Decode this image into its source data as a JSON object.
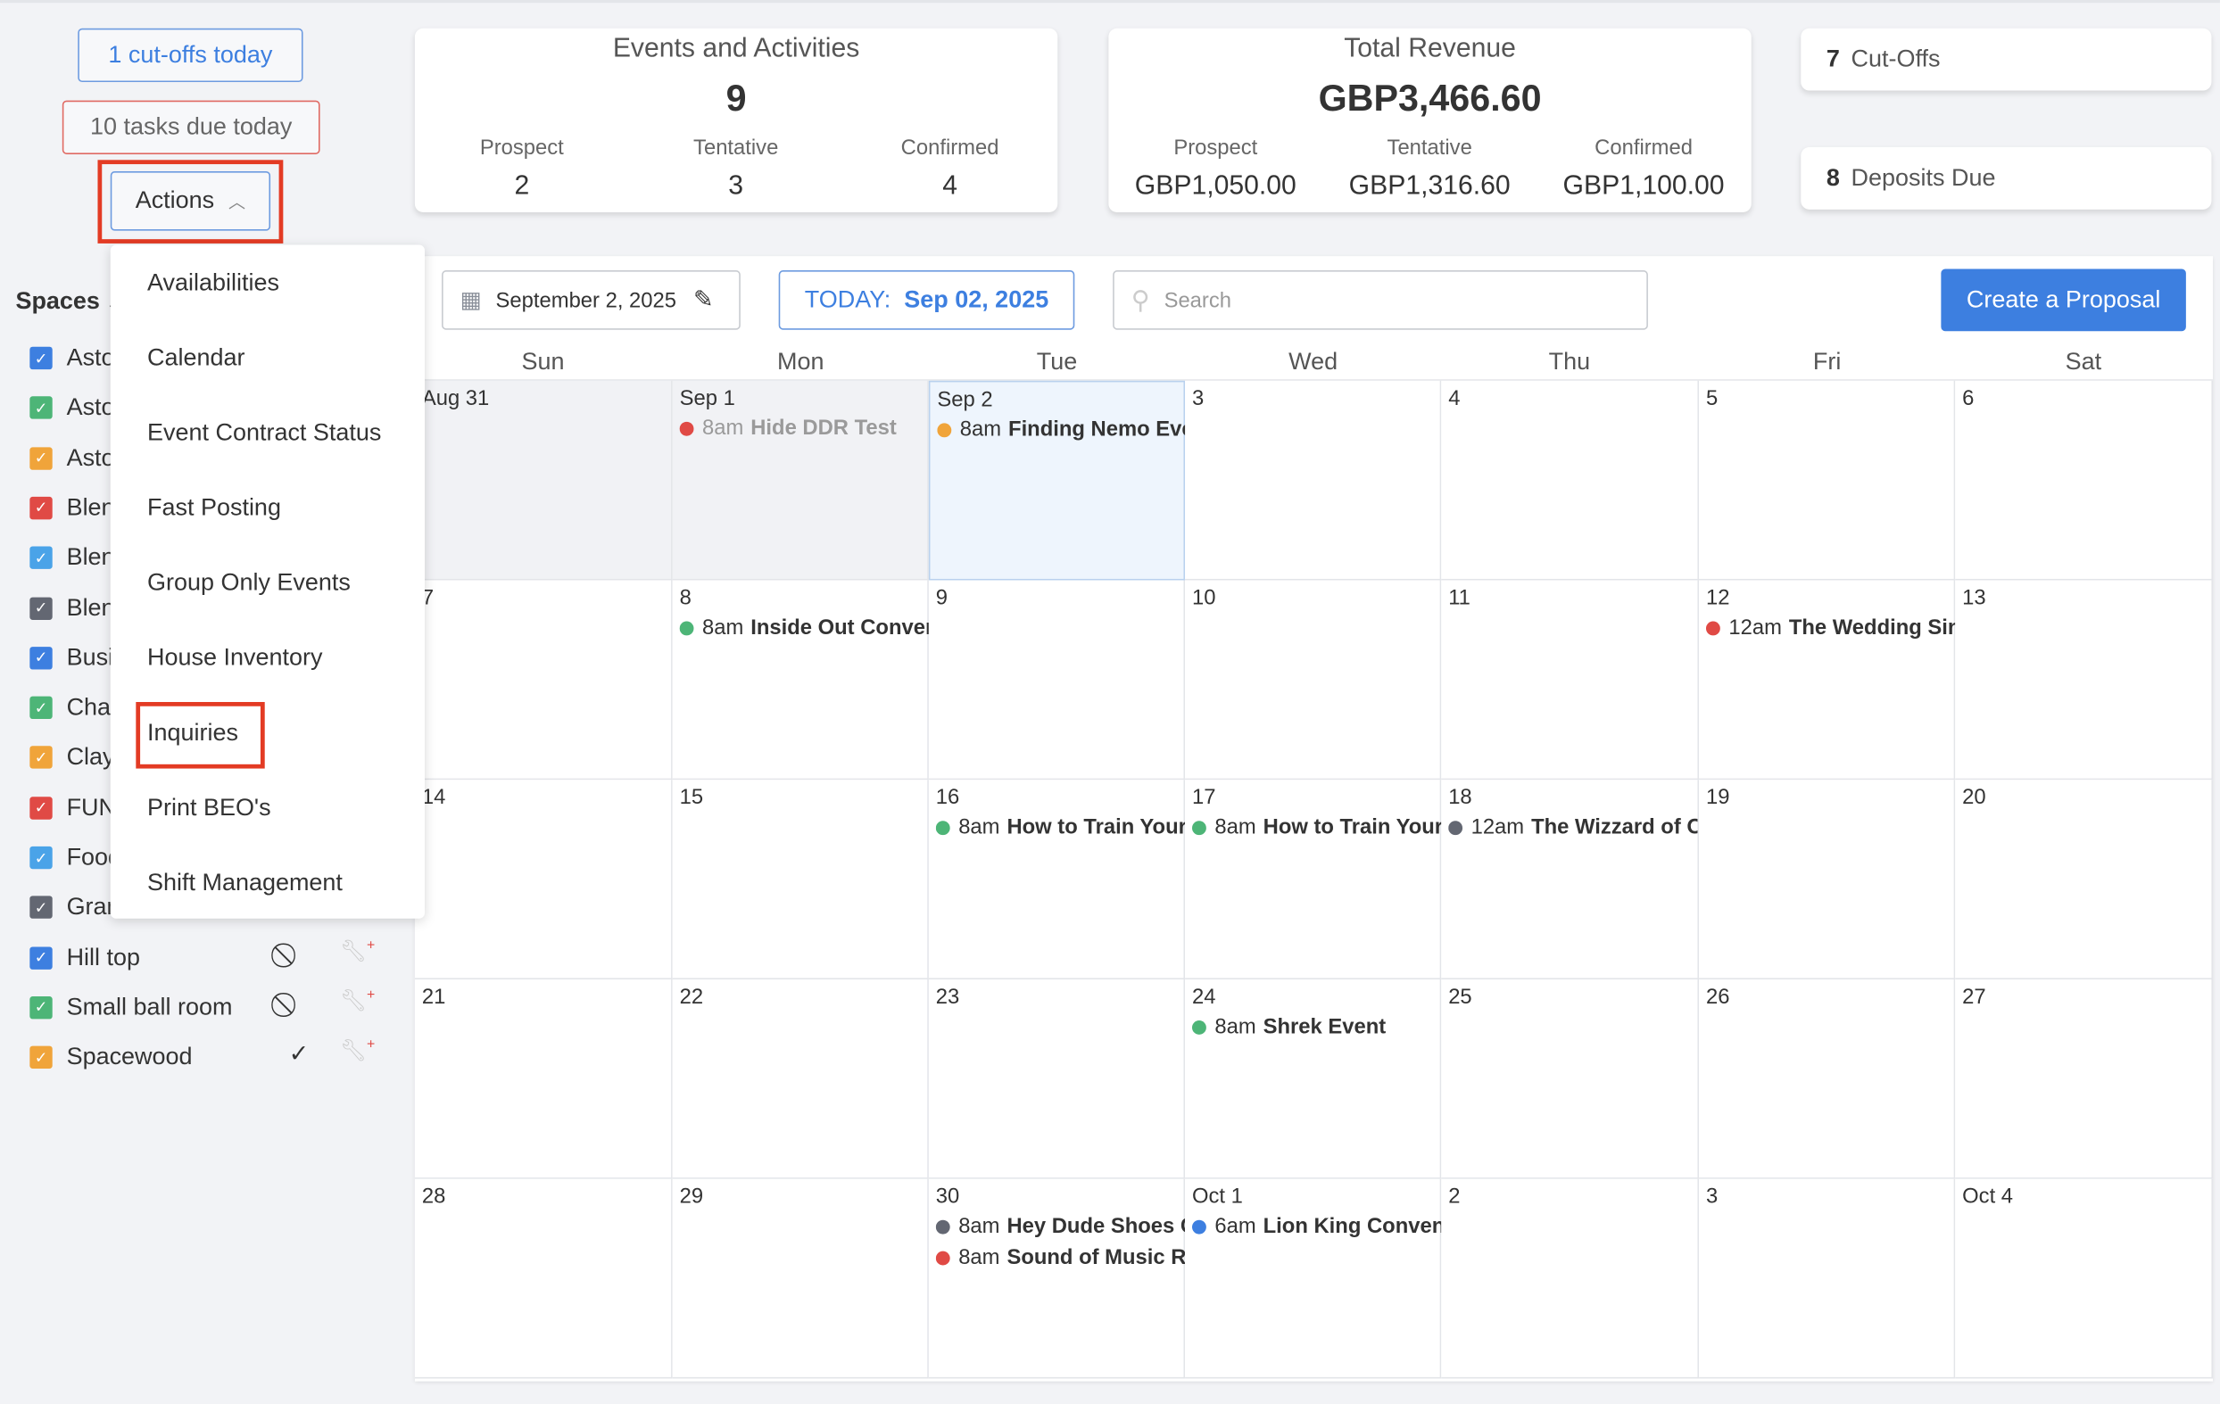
{
  "alerts": {
    "cutoffs": "1 cut-offs today",
    "tasks": "10 tasks due today",
    "actions": "Actions"
  },
  "actions_menu": [
    "Availabilities",
    "Calendar",
    "Event Contract Status",
    "Fast Posting",
    "Group Only Events",
    "House Inventory",
    "Inquiries",
    "Print BEO's",
    "Shift Management"
  ],
  "spaces": {
    "title": "Spaces",
    "items": [
      {
        "label": "Asto",
        "color": "#3d7fe0"
      },
      {
        "label": "Asto",
        "color": "#4db577"
      },
      {
        "label": "Asto",
        "color": "#f0a43a"
      },
      {
        "label": "Blen",
        "color": "#e04a45"
      },
      {
        "label": "Blen",
        "color": "#4aa3e8"
      },
      {
        "label": "Blen",
        "color": "#636772"
      },
      {
        "label": "Busi",
        "color": "#3d7fe0"
      },
      {
        "label": "Cha",
        "color": "#4db577"
      },
      {
        "label": "Clay",
        "color": "#f0a43a"
      },
      {
        "label": "FUN",
        "color": "#e04a45"
      },
      {
        "label": "Food",
        "color": "#4aa3e8"
      },
      {
        "label": "Gran",
        "color": "#636772"
      },
      {
        "label": "Hill top",
        "color": "#3d7fe0",
        "status": "⃠"
      },
      {
        "label": "Small ball room",
        "color": "#4db577",
        "status": "⃠"
      },
      {
        "label": "Spacewood",
        "color": "#f0a43a",
        "status": "✓"
      }
    ]
  },
  "stats": {
    "events": {
      "title": "Events and Activities",
      "total": "9",
      "cols": [
        {
          "label": "Prospect",
          "value": "2"
        },
        {
          "label": "Tentative",
          "value": "3"
        },
        {
          "label": "Confirmed",
          "value": "4"
        }
      ]
    },
    "revenue": {
      "title": "Total Revenue",
      "total": "GBP3,466.60",
      "cols": [
        {
          "label": "Prospect",
          "value": "GBP1,050.00"
        },
        {
          "label": "Tentative",
          "value": "GBP1,316.60"
        },
        {
          "label": "Confirmed",
          "value": "GBP1,100.00"
        }
      ]
    },
    "cutoffs": {
      "count": "7",
      "label": "Cut-Offs"
    },
    "deposits": {
      "count": "8",
      "label": "Deposits Due"
    }
  },
  "toolbar": {
    "date": "September 2, 2025",
    "today_label": "TODAY:",
    "today_date": "Sep 02, 2025",
    "search_placeholder": "Search",
    "create": "Create a Proposal"
  },
  "calendar": {
    "days": [
      "Sun",
      "Mon",
      "Tue",
      "Wed",
      "Thu",
      "Fri",
      "Sat"
    ],
    "weeks": [
      [
        {
          "d": "Aug 31",
          "past": true
        },
        {
          "d": "Sep 1",
          "past": true,
          "events": [
            {
              "time": "8am",
              "name": "Hide DDR Test",
              "color": "#e04a45",
              "muted": true
            }
          ]
        },
        {
          "d": "Sep 2",
          "today": true,
          "events": [
            {
              "time": "8am",
              "name": "Finding Nemo Event",
              "color": "#f0a43a"
            }
          ]
        },
        {
          "d": "3"
        },
        {
          "d": "4"
        },
        {
          "d": "5"
        },
        {
          "d": "6"
        }
      ],
      [
        {
          "d": "7"
        },
        {
          "d": "8",
          "events": [
            {
              "time": "8am",
              "name": "Inside Out Convention",
              "color": "#4db577"
            }
          ]
        },
        {
          "d": "9"
        },
        {
          "d": "10"
        },
        {
          "d": "11"
        },
        {
          "d": "12",
          "events": [
            {
              "time": "12am",
              "name": "The Wedding Singer",
              "color": "#e04a45"
            }
          ]
        },
        {
          "d": "13"
        }
      ],
      [
        {
          "d": "14"
        },
        {
          "d": "15"
        },
        {
          "d": "16",
          "events": [
            {
              "time": "8am",
              "name": "How to Train Your Dragon",
              "color": "#4db577"
            }
          ]
        },
        {
          "d": "17",
          "events": [
            {
              "time": "8am",
              "name": "How to Train Your Dragon",
              "color": "#4db577"
            }
          ]
        },
        {
          "d": "18",
          "events": [
            {
              "time": "12am",
              "name": "The Wizzard of Oz",
              "color": "#636772"
            }
          ]
        },
        {
          "d": "19"
        },
        {
          "d": "20"
        }
      ],
      [
        {
          "d": "21"
        },
        {
          "d": "22"
        },
        {
          "d": "23"
        },
        {
          "d": "24",
          "events": [
            {
              "time": "8am",
              "name": "Shrek Event",
              "color": "#4db577"
            }
          ]
        },
        {
          "d": "25"
        },
        {
          "d": "26"
        },
        {
          "d": "27"
        }
      ],
      [
        {
          "d": "28"
        },
        {
          "d": "29"
        },
        {
          "d": "30",
          "events": [
            {
              "time": "8am",
              "name": "Hey Dude Shoes Co",
              "color": "#636772"
            },
            {
              "time": "8am",
              "name": "Sound of Music Re",
              "color": "#e04a45"
            }
          ]
        },
        {
          "d": "Oct 1",
          "events": [
            {
              "time": "6am",
              "name": "Lion King Convention",
              "color": "#3d7fe0"
            }
          ]
        },
        {
          "d": "2"
        },
        {
          "d": "3"
        },
        {
          "d": "Oct 4"
        }
      ]
    ]
  }
}
